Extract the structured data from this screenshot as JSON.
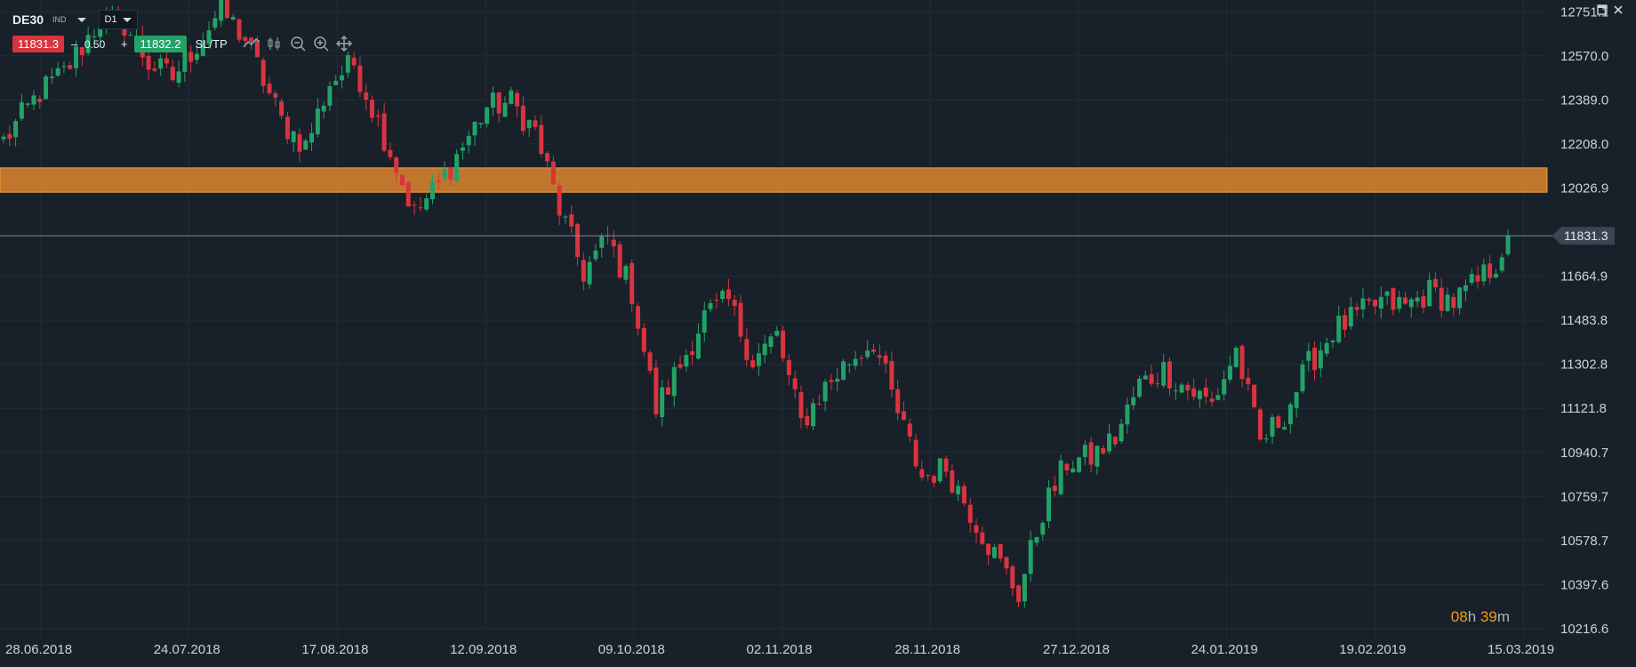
{
  "header": {
    "symbol": "DE30",
    "instrument_type": "IND",
    "timeframe": "D1",
    "bid": "11831.3",
    "spread": "0.50",
    "minus": "–",
    "plus": "+",
    "ask": "11832.2",
    "sltp": "SL/TP",
    "tools": [
      "line-chart-icon",
      "candlestick-icon",
      "zoom-out-icon",
      "zoom-in-icon",
      "move-icon"
    ]
  },
  "window_controls": [
    "maximize-icon",
    "close-icon"
  ],
  "timer": {
    "hours": "08",
    "h": "h",
    "minutes": "39",
    "m": "m"
  },
  "chart_data": {
    "type": "candlestick",
    "symbol": "DE30",
    "timeframe": "D1",
    "ylim": [
      10176,
      12800
    ],
    "y_ticks": [
      "12751.1",
      "12570.0",
      "12389.0",
      "12208.0",
      "12026.9",
      "11664.9",
      "11483.8",
      "11302.8",
      "11121.8",
      "10940.7",
      "10759.7",
      "10578.7",
      "10397.6",
      "10216.6"
    ],
    "x_ticks": [
      "28.06.2018",
      "24.07.2018",
      "17.08.2018",
      "12.09.2018",
      "09.10.2018",
      "02.11.2018",
      "28.11.2018",
      "27.12.2018",
      "24.01.2019",
      "19.02.2019",
      "15.03.2019"
    ],
    "current_price": "11831.3",
    "resistance_zone": [
      12010,
      12110
    ],
    "colors": {
      "up": "#23a267",
      "down": "#d8343f",
      "zone": "#e58a2e",
      "background": "#182029",
      "grid": "#222c36"
    },
    "anchors": [
      [
        0,
        12220
      ],
      [
        6,
        12420
      ],
      [
        10,
        12500
      ],
      [
        16,
        12720
      ],
      [
        20,
        12700
      ],
      [
        24,
        12540
      ],
      [
        28,
        12480
      ],
      [
        36,
        12760
      ],
      [
        40,
        12640
      ],
      [
        46,
        12300
      ],
      [
        50,
        12200
      ],
      [
        54,
        12460
      ],
      [
        58,
        12540
      ],
      [
        64,
        12180
      ],
      [
        68,
        11920
      ],
      [
        72,
        12040
      ],
      [
        80,
        12360
      ],
      [
        84,
        12380
      ],
      [
        88,
        12260
      ],
      [
        92,
        11940
      ],
      [
        96,
        11680
      ],
      [
        100,
        11820
      ],
      [
        104,
        11600
      ],
      [
        108,
        11120
      ],
      [
        112,
        11300
      ],
      [
        116,
        11500
      ],
      [
        120,
        11560
      ],
      [
        124,
        11320
      ],
      [
        128,
        11420
      ],
      [
        132,
        11060
      ],
      [
        136,
        11210
      ],
      [
        140,
        11320
      ],
      [
        144,
        11400
      ],
      [
        148,
        11100
      ],
      [
        152,
        10840
      ],
      [
        156,
        10880
      ],
      [
        160,
        10700
      ],
      [
        164,
        10520
      ],
      [
        168,
        10360
      ],
      [
        172,
        10700
      ],
      [
        176,
        10900
      ],
      [
        180,
        10920
      ],
      [
        184,
        11000
      ],
      [
        188,
        11220
      ],
      [
        192,
        11280
      ],
      [
        196,
        11200
      ],
      [
        200,
        11140
      ],
      [
        204,
        11360
      ],
      [
        208,
        10980
      ],
      [
        212,
        11100
      ],
      [
        216,
        11300
      ],
      [
        220,
        11440
      ],
      [
        224,
        11500
      ],
      [
        228,
        11560
      ],
      [
        232,
        11540
      ],
      [
        236,
        11600
      ],
      [
        240,
        11560
      ],
      [
        244,
        11640
      ],
      [
        247,
        11720
      ],
      [
        249,
        11831
      ]
    ]
  }
}
